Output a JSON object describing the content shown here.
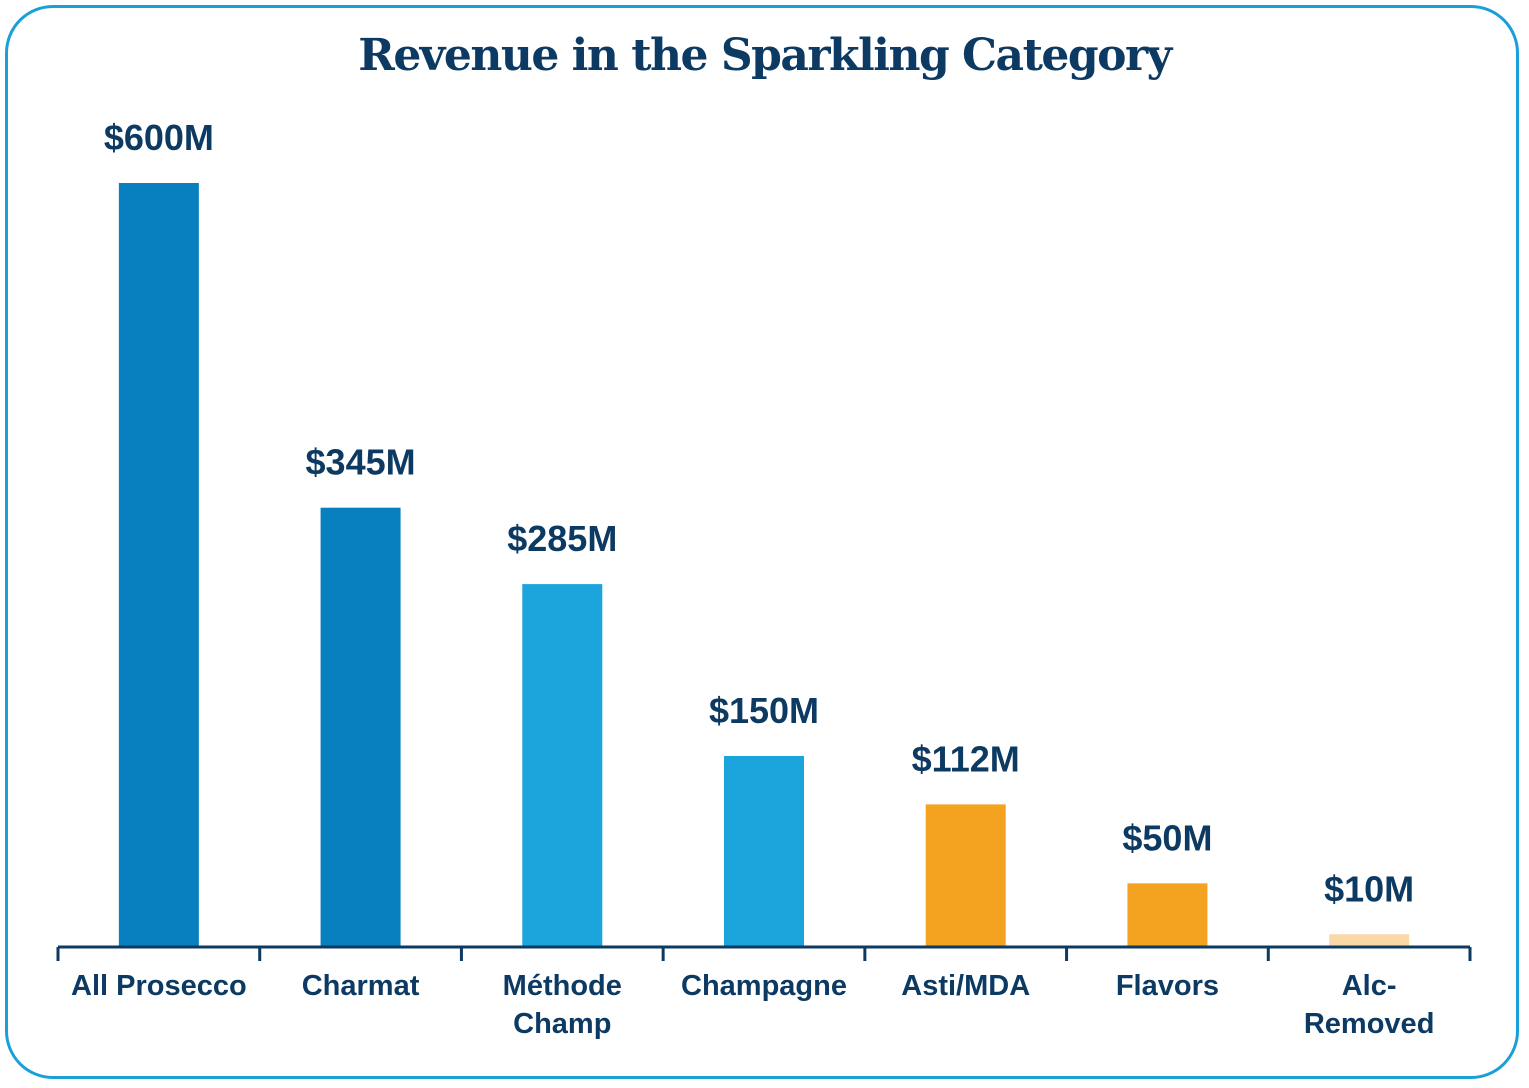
{
  "chart_data": {
    "type": "bar",
    "title": "Revenue in the Sparkling Category",
    "xlabel": "",
    "ylabel": "",
    "categories": [
      [
        "All Prosecco"
      ],
      [
        "Charmat"
      ],
      [
        "Méthode",
        "Champ"
      ],
      [
        "Champagne"
      ],
      [
        "Asti/MDA"
      ],
      [
        "Flavors"
      ],
      [
        "Alc-",
        "Removed"
      ]
    ],
    "values": [
      600,
      345,
      285,
      150,
      112,
      50,
      10
    ],
    "value_labels": [
      "$600M",
      "$345M",
      "$285M",
      "$150M",
      "$112M",
      "$50M",
      "$10M"
    ],
    "unit": "$M",
    "ylim": [
      0,
      600
    ],
    "grid": false,
    "bar_colors": [
      "#0880c0",
      "#0880c0",
      "#1ba5dc",
      "#1ba5dc",
      "#f4a321",
      "#f4a321",
      "#fbd9a6"
    ],
    "axis_color": "#0d3a62",
    "text_color": "#0d3a62",
    "border_color": "#1a9fd8"
  }
}
